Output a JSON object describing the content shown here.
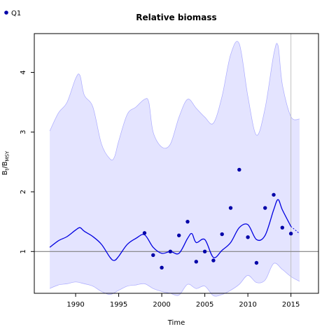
{
  "chart_data": {
    "type": "line",
    "title": "Relative biomass",
    "xlabel": "Time",
    "ylabel": {
      "base": "B",
      "sub1": "t",
      "sep": "/B",
      "sub2": "MSY"
    },
    "xlim": [
      1985.2,
      2018.2
    ],
    "ylim": [
      0.3,
      4.65
    ],
    "xticks": [
      1990,
      1995,
      2000,
      2005,
      2010,
      2015
    ],
    "yticks": [
      1,
      2,
      3,
      4
    ],
    "reference_line": {
      "y": 1.0,
      "color": "#808080"
    },
    "vertical_line": {
      "x": 2015,
      "color": "#c0c0c0"
    },
    "legend": [
      {
        "label": "Q1",
        "color": "#0000a8",
        "marker": "circle"
      }
    ],
    "colors": {
      "band": "#e4e4ff",
      "band_edge": "#aaaaff",
      "line": "#0000e0",
      "points": "#0000a8"
    },
    "series": [
      {
        "kind": "line",
        "x": [
          1987,
          1988,
          1989,
          1990,
          1990.5,
          1991,
          1992,
          1993,
          1994,
          1994.5,
          1995,
          1996,
          1997,
          1998,
          1999,
          2000,
          2001,
          2002,
          2003,
          2003.5,
          2004,
          2005,
          2006,
          2007,
          2008,
          2009,
          2010,
          2011,
          2012,
          2013,
          2013.5,
          2014,
          2015
        ],
        "y": [
          1.07,
          1.18,
          1.25,
          1.36,
          1.4,
          1.34,
          1.25,
          1.12,
          0.9,
          0.85,
          0.92,
          1.12,
          1.22,
          1.28,
          1.07,
          0.97,
          1.0,
          0.97,
          1.22,
          1.3,
          1.15,
          1.2,
          0.9,
          1.02,
          1.15,
          1.4,
          1.45,
          1.2,
          1.27,
          1.7,
          1.87,
          1.7,
          1.42
        ]
      },
      {
        "kind": "projection",
        "x": [
          2015,
          2016
        ],
        "y": [
          1.42,
          1.3
        ]
      },
      {
        "kind": "confidence_upper",
        "x": [
          1987,
          1988,
          1989,
          1990,
          1990.5,
          1991,
          1992,
          1993,
          1994,
          1994.5,
          1995,
          1996,
          1997,
          1998,
          1998.5,
          1999,
          2000,
          2001,
          2002,
          2003,
          2004,
          2005,
          2006,
          2007,
          2008,
          2009,
          2010,
          2011,
          2012,
          2013,
          2013.5,
          2014,
          2015,
          2016
        ],
        "y": [
          3.02,
          3.32,
          3.5,
          3.9,
          3.95,
          3.62,
          3.42,
          2.8,
          2.55,
          2.58,
          2.85,
          3.3,
          3.42,
          3.55,
          3.5,
          3.0,
          2.75,
          2.8,
          3.25,
          3.55,
          3.4,
          3.25,
          3.15,
          3.6,
          4.3,
          4.48,
          3.6,
          2.95,
          3.4,
          4.3,
          4.45,
          3.8,
          3.26,
          3.22
        ]
      },
      {
        "kind": "confidence_lower",
        "x": [
          1987,
          1988,
          1989,
          1990,
          1991,
          1992,
          1993,
          1994,
          1995,
          1996,
          1997,
          1998,
          1999,
          2000,
          2001,
          2002,
          2003,
          2004,
          2005,
          2006,
          2007,
          2008,
          2009,
          2010,
          2011,
          2012,
          2013,
          2014,
          2015,
          2016
        ],
        "y": [
          0.38,
          0.44,
          0.46,
          0.49,
          0.46,
          0.42,
          0.33,
          0.28,
          0.35,
          0.42,
          0.44,
          0.46,
          0.38,
          0.33,
          0.3,
          0.27,
          0.45,
          0.38,
          0.42,
          0.26,
          0.28,
          0.35,
          0.45,
          0.6,
          0.48,
          0.52,
          0.8,
          0.7,
          0.58,
          0.5
        ]
      },
      {
        "kind": "scatter",
        "name": "Q1",
        "x": [
          1998,
          1999,
          2000,
          2001,
          2002,
          2003,
          2004,
          2005,
          2006,
          2007,
          2008,
          2009,
          2010,
          2011,
          2012,
          2013,
          2014,
          2015
        ],
        "y": [
          1.31,
          0.94,
          0.73,
          1.0,
          1.27,
          1.5,
          0.83,
          1.0,
          0.85,
          1.29,
          1.73,
          2.37,
          1.24,
          0.81,
          1.73,
          1.95,
          1.4,
          1.3
        ]
      }
    ]
  }
}
